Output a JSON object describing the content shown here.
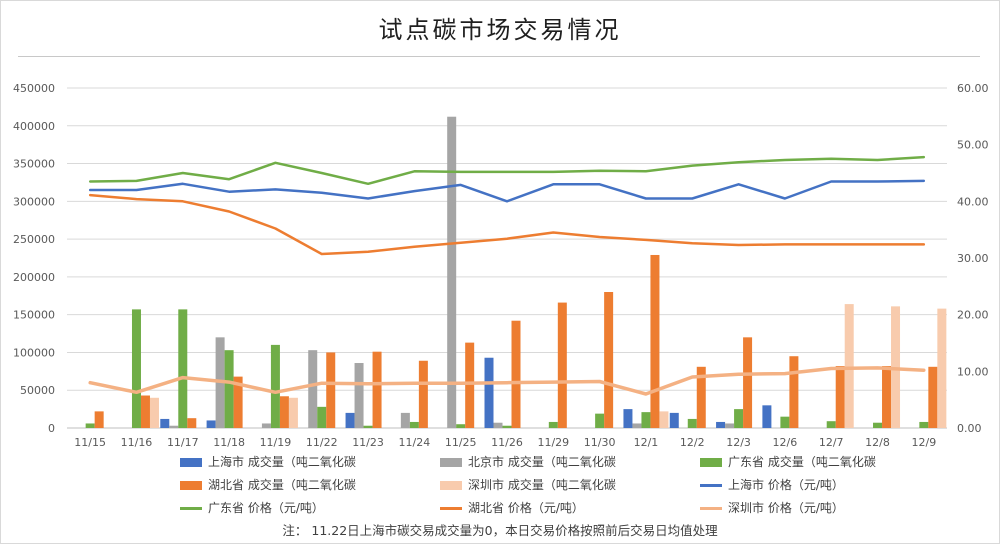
{
  "chart_data": {
    "type": "bar",
    "title": "试点碳市场交易情况",
    "categories": [
      "11/15",
      "11/16",
      "11/17",
      "11/18",
      "11/19",
      "11/22",
      "11/23",
      "11/24",
      "11/25",
      "11/26",
      "11/29",
      "11/30",
      "12/1",
      "12/2",
      "12/3",
      "12/6",
      "12/7",
      "12/8",
      "12/9"
    ],
    "ylim": [
      0,
      450000
    ],
    "y_ticks": [
      "0",
      "50000",
      "100000",
      "150000",
      "200000",
      "250000",
      "300000",
      "350000",
      "400000",
      "450000"
    ],
    "y2lim": [
      0,
      60
    ],
    "y2_ticks": [
      "0.00",
      "10.00",
      "20.00",
      "30.00",
      "40.00",
      "50.00",
      "60.00"
    ],
    "grid": true,
    "legend_position": "bottom",
    "bar_series": [
      {
        "name": "上海市 成交量（吨二氧化碳",
        "color": "#4472c4",
        "values": [
          0,
          0,
          12000,
          10000,
          0,
          0,
          20000,
          0,
          0,
          93000,
          0,
          0,
          25000,
          20000,
          8000,
          30000,
          0,
          0,
          0
        ]
      },
      {
        "name": "北京市 成交量（吨二氧化碳",
        "color": "#a5a5a5",
        "values": [
          0,
          0,
          3000,
          120000,
          6000,
          103000,
          86000,
          20000,
          412000,
          7000,
          0,
          0,
          6000,
          0,
          6000,
          0,
          0,
          0,
          0
        ]
      },
      {
        "name": "广东省 成交量（吨二氧化碳",
        "color": "#70ad47",
        "values": [
          6000,
          157000,
          157000,
          103000,
          110000,
          28000,
          3000,
          8000,
          5000,
          3000,
          8000,
          19000,
          21000,
          12000,
          25000,
          15000,
          9000,
          7000,
          8000
        ]
      },
      {
        "name": "湖北省 成交量（吨二氧化碳",
        "color": "#ed7d31",
        "values": [
          22000,
          43000,
          13000,
          68000,
          42000,
          100000,
          101000,
          89000,
          113000,
          142000,
          166000,
          180000,
          229000,
          81000,
          120000,
          95000,
          82000,
          82000,
          81000
        ]
      },
      {
        "name": "深圳市 成交量（吨二氧化碳",
        "color": "#f8cbad",
        "values": [
          0,
          40000,
          0,
          0,
          40000,
          0,
          0,
          0,
          0,
          0,
          0,
          0,
          22000,
          0,
          0,
          0,
          164000,
          161000,
          158000
        ]
      }
    ],
    "line_series": [
      {
        "name": "上海市 价格（元/吨）",
        "color": "#4472c4",
        "width": 2.5,
        "values": [
          42.0,
          42.0,
          43.1,
          41.7,
          42.1,
          41.5,
          40.5,
          41.8,
          42.9,
          40.0,
          43.0,
          43.0,
          40.5,
          40.5,
          43.0,
          40.5,
          43.5,
          43.5,
          43.6
        ]
      },
      {
        "name": "广东省 价格（元/吨）",
        "color": "#70ad47",
        "width": 2.5,
        "values": [
          43.5,
          43.6,
          45.0,
          43.9,
          46.8,
          45.0,
          43.1,
          45.3,
          45.2,
          45.2,
          45.2,
          45.4,
          45.3,
          46.3,
          46.9,
          47.3,
          47.5,
          47.3,
          47.8
        ]
      },
      {
        "name": "湖北省 价格（元/吨）",
        "color": "#ed7d31",
        "width": 2.5,
        "values": [
          41.1,
          40.4,
          40.0,
          38.2,
          35.2,
          30.7,
          31.1,
          32.0,
          32.7,
          33.4,
          34.5,
          33.7,
          33.2,
          32.6,
          32.3,
          32.4,
          32.4,
          32.4,
          32.4
        ]
      },
      {
        "name": "深圳市 价格（元/吨）",
        "color": "#f4b183",
        "width": 3.5,
        "values": [
          8.0,
          6.3,
          8.9,
          8.1,
          6.3,
          7.9,
          7.8,
          7.9,
          7.9,
          8.0,
          8.1,
          8.2,
          6.0,
          9.0,
          9.5,
          9.6,
          10.5,
          10.6,
          10.2
        ]
      }
    ]
  },
  "footnote": "注：  11.22日上海市碳交易成交量为0，本日交易价格按照前后交易日均值处理"
}
